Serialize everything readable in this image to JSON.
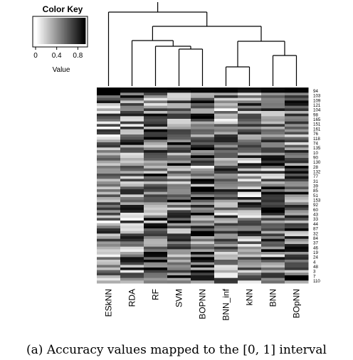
{
  "caption": "(a) Accuracy values mapped to the [0, 1] interval",
  "chart_data": {
    "type": "heatmap",
    "color_key": {
      "title": "Color Key",
      "xlabel": "Value",
      "ticks": [
        "0",
        "0.4",
        "0.8"
      ],
      "range": [
        0,
        1
      ],
      "low_color": "#ffffff",
      "high_color": "#000000"
    },
    "columns": [
      "ESkNN",
      "RDA",
      "RF",
      "SVM",
      "BOPNN",
      "BNN_inf",
      "kNN",
      "BNN",
      "BOpNN"
    ],
    "row_labels": [
      "94",
      "103",
      "109",
      "121",
      "104",
      "98",
      "165",
      "151",
      "161",
      "76",
      "118",
      "74",
      "135",
      "10",
      "90",
      "130",
      "28",
      "132",
      "77",
      "31",
      "39",
      "85",
      "51",
      "153",
      "92",
      "60",
      "43",
      "33",
      "44",
      "87",
      "32",
      "84",
      "37",
      "46",
      "19",
      "24",
      "4",
      "48",
      "3",
      "7",
      "110"
    ],
    "column_dendrogram": "((ESkNN),((RDA),((RF),(SVM,BOPNN))),((BNN_inf,kNN),(BNN,BOpNN)))",
    "grid": false
  }
}
